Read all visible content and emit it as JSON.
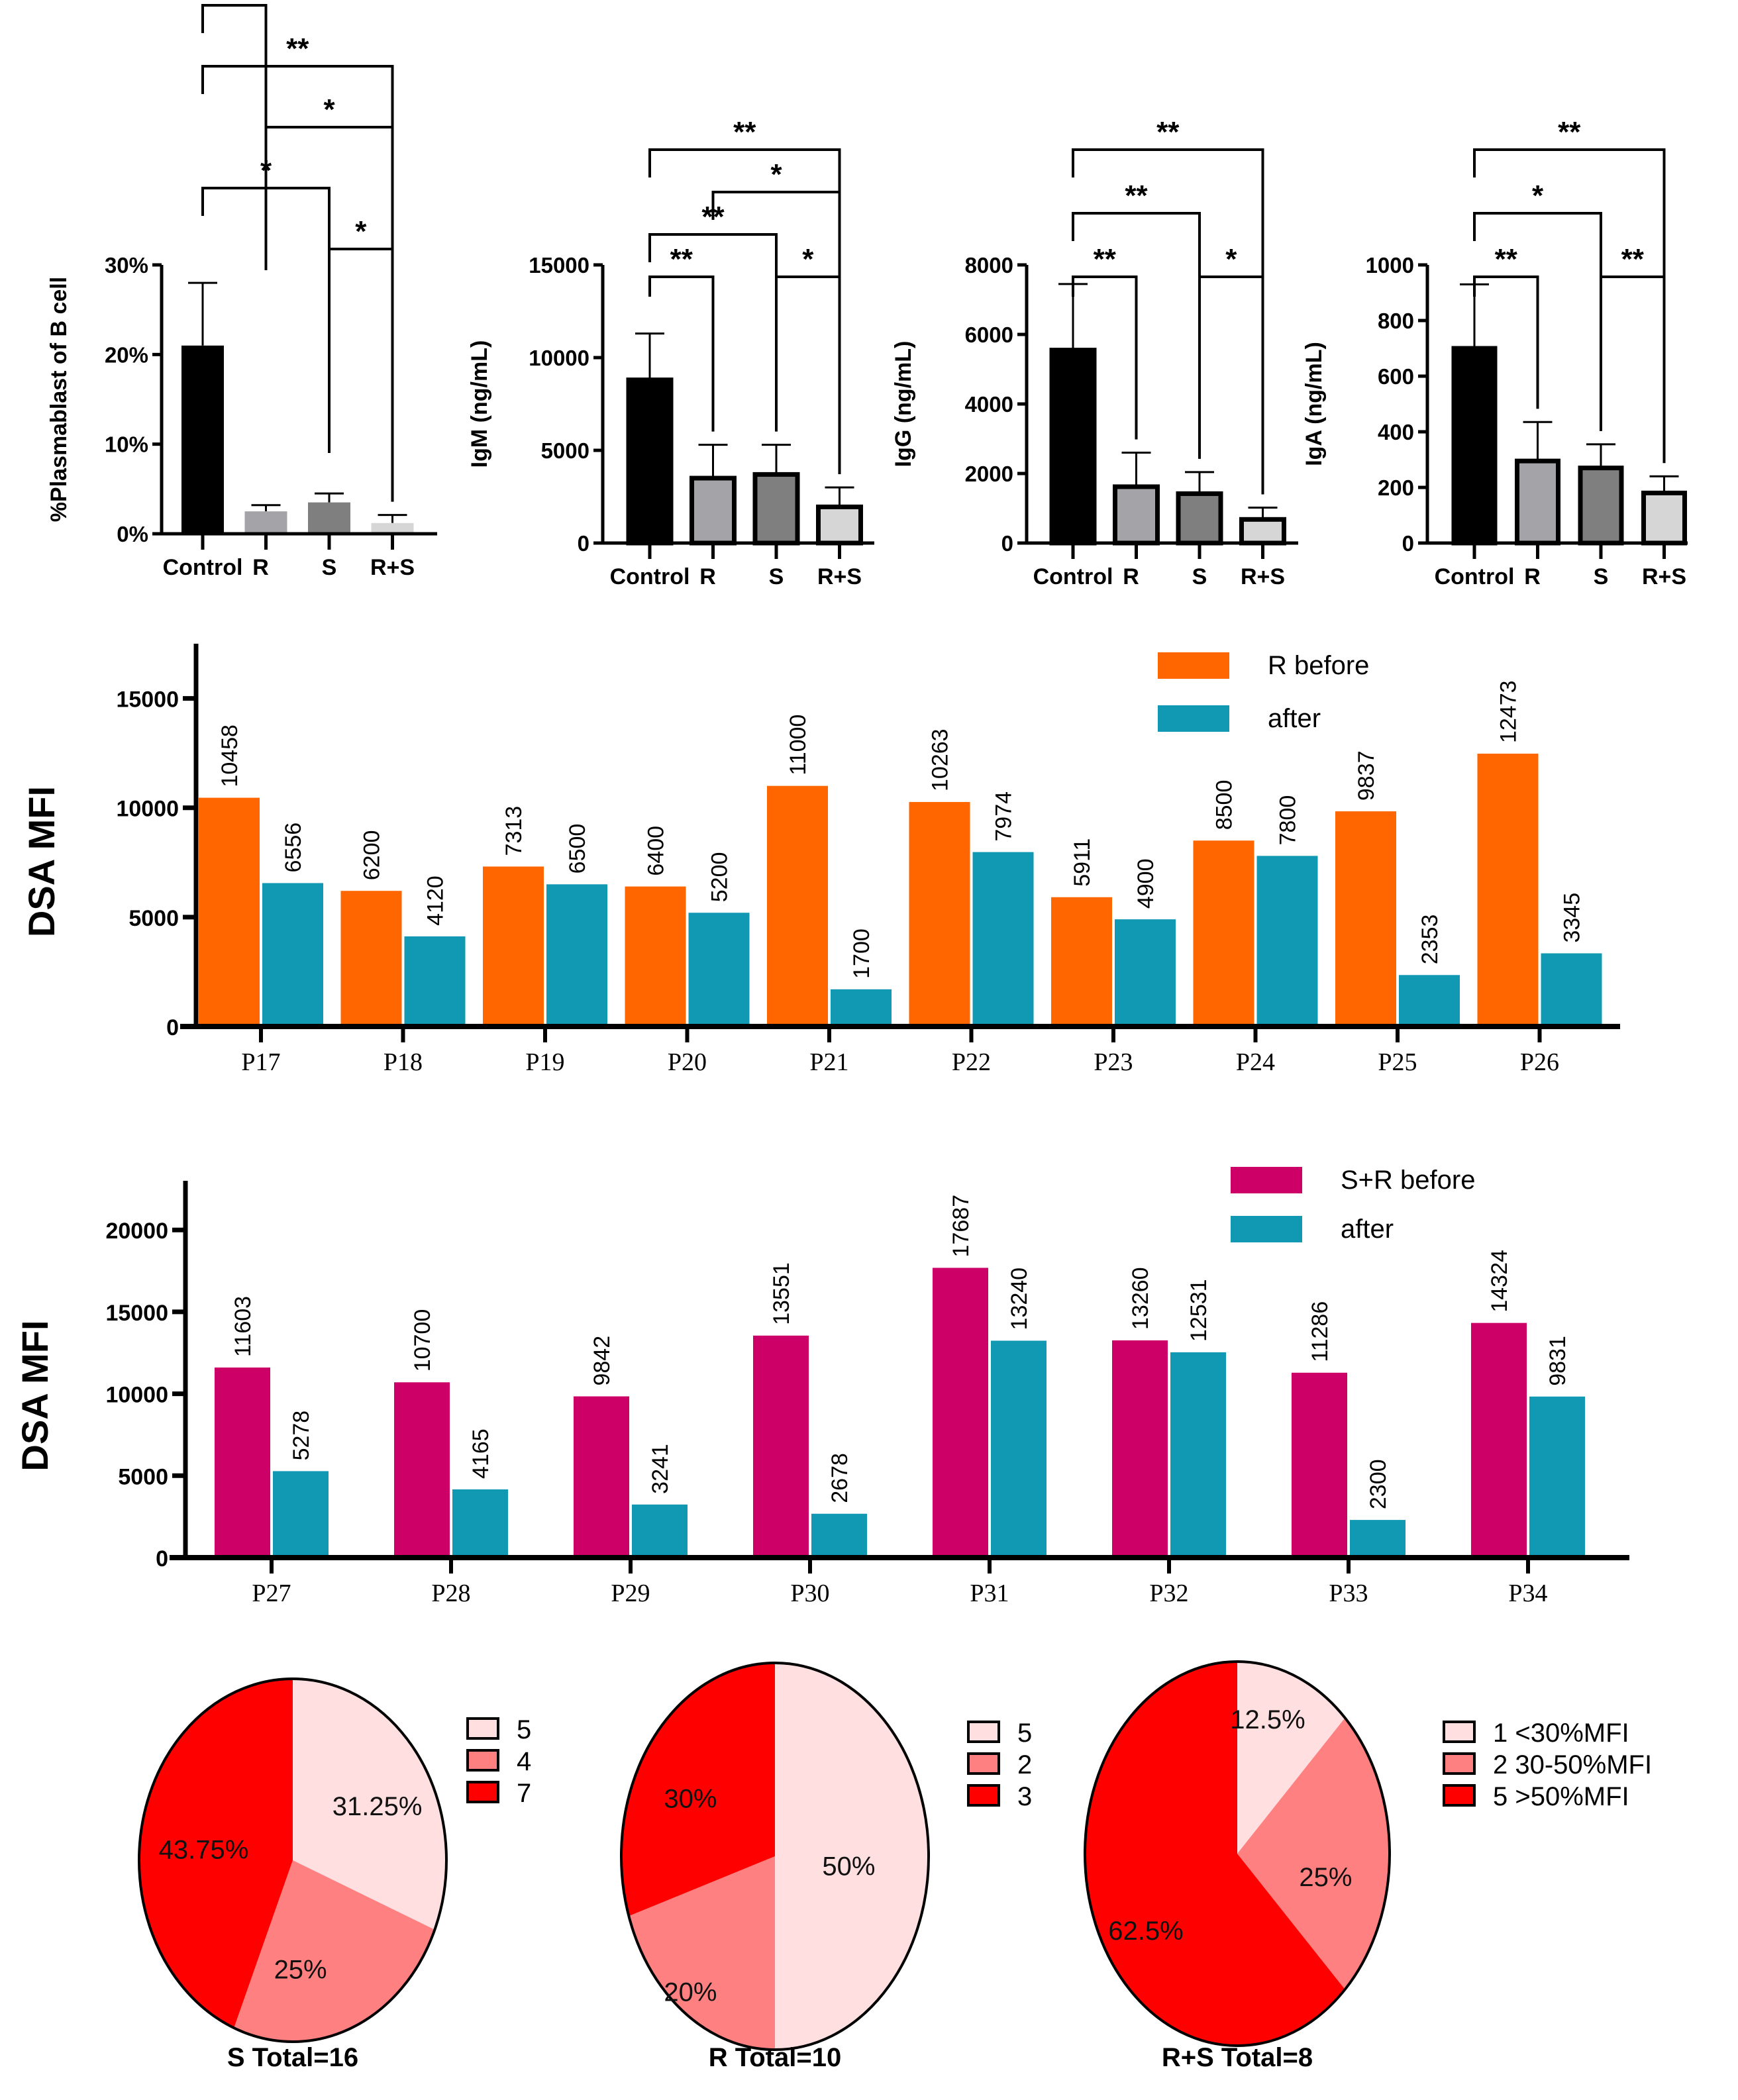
{
  "chart_data": [
    {
      "id": "plasmablast",
      "type": "bar",
      "title": "",
      "xlabel": "",
      "ylabel": "%Plasmablast of B cell",
      "categories": [
        "Control",
        "R",
        "S",
        "R+S"
      ],
      "values": [
        21.0,
        2.5,
        3.5,
        1.2
      ],
      "error_upper": [
        28.0,
        3.2,
        4.5,
        2.1
      ],
      "value_unit": "%",
      "ylim": [
        0,
        30
      ],
      "yticks": [
        0,
        10,
        20,
        30
      ],
      "ytick_labels": [
        "0%",
        "10%",
        "20%",
        "30%"
      ],
      "bar_colors": [
        "#000000",
        "#a3a3a8",
        "#7f7f7f",
        "#d6d6d6"
      ],
      "bar_outline": false,
      "significance": [
        {
          "from": "Control",
          "to": "R",
          "label": "*",
          "level": 4
        },
        {
          "from": "Control",
          "to": "R+S",
          "label": "**",
          "level": 3
        },
        {
          "from": "R",
          "to": "R+S",
          "label": "*",
          "level": 2
        },
        {
          "from": "Control",
          "to": "S",
          "label": "*",
          "level": 1
        },
        {
          "from": "S",
          "to": "R+S",
          "label": "*",
          "level": 0
        }
      ]
    },
    {
      "id": "igm",
      "type": "bar",
      "title": "",
      "xlabel": "",
      "ylabel": "IgM (ng/mL)",
      "categories": [
        "Control",
        "R",
        "S",
        "R+S"
      ],
      "values": [
        8800,
        3500,
        3700,
        1950
      ],
      "error_upper": [
        11300,
        5300,
        5300,
        3000
      ],
      "ylim": [
        0,
        15000
      ],
      "yticks": [
        0,
        5000,
        10000,
        15000
      ],
      "ytick_labels": [
        "0",
        "5000",
        "10000",
        "15000"
      ],
      "bar_colors": [
        "#000000",
        "#a3a3a8",
        "#7f7f7f",
        "#d6d6d6"
      ],
      "bar_outline": true,
      "significance": [
        {
          "from": "Control",
          "to": "R+S",
          "label": "**",
          "level": 3
        },
        {
          "from": "R",
          "to": "R+S",
          "label": "*",
          "level": 2
        },
        {
          "from": "Control",
          "to": "S",
          "label": "**",
          "level": 1
        },
        {
          "from": "Control",
          "to": "R",
          "label": "**",
          "level": 0
        },
        {
          "from": "S",
          "to": "R+S",
          "label": "*",
          "level": 0
        }
      ]
    },
    {
      "id": "igg",
      "type": "bar",
      "title": "",
      "xlabel": "",
      "ylabel": "IgG (ng/mL)",
      "categories": [
        "Control",
        "R",
        "S",
        "R+S"
      ],
      "values": [
        5550,
        1620,
        1420,
        680
      ],
      "error_upper": [
        7450,
        2600,
        2040,
        1020
      ],
      "ylim": [
        0,
        8000
      ],
      "yticks": [
        0,
        2000,
        4000,
        6000,
        8000
      ],
      "ytick_labels": [
        "0",
        "2000",
        "4000",
        "6000",
        "8000"
      ],
      "bar_colors": [
        "#000000",
        "#a3a3a8",
        "#7f7f7f",
        "#d6d6d6"
      ],
      "bar_outline": true,
      "significance": [
        {
          "from": "Control",
          "to": "R+S",
          "label": "**",
          "level": 2
        },
        {
          "from": "Control",
          "to": "S",
          "label": "**",
          "level": 1
        },
        {
          "from": "Control",
          "to": "R",
          "label": "**",
          "level": 0
        },
        {
          "from": "S",
          "to": "R+S",
          "label": "*",
          "level": 0
        }
      ]
    },
    {
      "id": "iga",
      "type": "bar",
      "title": "",
      "xlabel": "",
      "ylabel": "IgA (ng/mL)",
      "categories": [
        "Control",
        "R",
        "S",
        "R+S"
      ],
      "values": [
        700,
        295,
        270,
        180
      ],
      "error_upper": [
        930,
        435,
        355,
        240
      ],
      "ylim": [
        0,
        1000
      ],
      "yticks": [
        0,
        200,
        400,
        600,
        800,
        1000
      ],
      "ytick_labels": [
        "0",
        "200",
        "400",
        "600",
        "800",
        "1000"
      ],
      "bar_colors": [
        "#000000",
        "#a3a3a8",
        "#7f7f7f",
        "#d6d6d6"
      ],
      "bar_outline": true,
      "significance": [
        {
          "from": "Control",
          "to": "R+S",
          "label": "**",
          "level": 2
        },
        {
          "from": "Control",
          "to": "S",
          "label": "*",
          "level": 1
        },
        {
          "from": "Control",
          "to": "R",
          "label": "**",
          "level": 0
        },
        {
          "from": "S",
          "to": "R+S",
          "label": "**",
          "level": 0
        }
      ]
    },
    {
      "id": "dsa-r",
      "type": "bar",
      "title": "",
      "xlabel": "",
      "ylabel": "DSA MFI",
      "categories": [
        "P17",
        "P18",
        "P19",
        "P20",
        "P21",
        "P22",
        "P23",
        "P24",
        "P25",
        "P26"
      ],
      "series": [
        {
          "name": "R before",
          "color": "#ff6600",
          "values": [
            10458,
            6200,
            7313,
            6400,
            11000,
            10263,
            5911,
            8500,
            9837,
            12473
          ]
        },
        {
          "name": "after",
          "color": "#1199b4",
          "values": [
            6556,
            4120,
            6500,
            5200,
            1700,
            7974,
            4900,
            7800,
            2353,
            3345
          ]
        }
      ],
      "ylim": [
        0,
        17500
      ],
      "yticks": [
        0,
        5000,
        10000,
        15000
      ],
      "ytick_labels": [
        "0",
        "5000",
        "10000",
        "15000"
      ],
      "legend_position": "top-right",
      "data_labels": true
    },
    {
      "id": "dsa-sr",
      "type": "bar",
      "title": "",
      "xlabel": "",
      "ylabel": "DSA MFI",
      "categories": [
        "P27",
        "P28",
        "P29",
        "P30",
        "P31",
        "P32",
        "P33",
        "P34"
      ],
      "series": [
        {
          "name": "S+R before",
          "color": "#cc0066",
          "values": [
            11603,
            10700,
            9842,
            13551,
            17687,
            13260,
            11286,
            14324
          ]
        },
        {
          "name": "after",
          "color": "#1199b4",
          "values": [
            5278,
            4165,
            3241,
            2678,
            13240,
            12531,
            2300,
            9831
          ]
        }
      ],
      "ylim": [
        0,
        23000
      ],
      "yticks": [
        0,
        5000,
        10000,
        15000,
        20000
      ],
      "ytick_labels": [
        "0",
        "5000",
        "10000",
        "15000",
        "20000"
      ],
      "legend_position": "top-right",
      "data_labels": true
    },
    {
      "id": "pie-s",
      "type": "pie",
      "title": "S Total=16",
      "slices": [
        {
          "legend": "5",
          "value": 5,
          "label": "31.25%",
          "color": "#ffdfe0"
        },
        {
          "legend": "4",
          "value": 4,
          "label": "25%",
          "color": "#ff8080"
        },
        {
          "legend": "7",
          "value": 7,
          "label": "43.75%",
          "color": "#ff0000"
        }
      ],
      "legend_position": "top-right"
    },
    {
      "id": "pie-r",
      "type": "pie",
      "title": "R Total=10",
      "slices": [
        {
          "legend": "5",
          "value": 5,
          "label": "50%",
          "color": "#ffdfe0"
        },
        {
          "legend": "2",
          "value": 2,
          "label": "20%",
          "color": "#ff8080"
        },
        {
          "legend": "3",
          "value": 3,
          "label": "30%",
          "color": "#ff0000"
        }
      ],
      "legend_position": "top-right"
    },
    {
      "id": "pie-rs",
      "type": "pie",
      "title": "R+S Total=8",
      "slices": [
        {
          "legend": "1 <30%MFI",
          "value": 1,
          "label": "12.5%",
          "color": "#ffdfe0"
        },
        {
          "legend": "2 30-50%MFI",
          "value": 2,
          "label": "25%",
          "color": "#ff8080"
        },
        {
          "legend": "5 >50%MFI",
          "value": 5,
          "label": "62.5%",
          "color": "#ff0000"
        }
      ],
      "legend_position": "top-right"
    }
  ]
}
